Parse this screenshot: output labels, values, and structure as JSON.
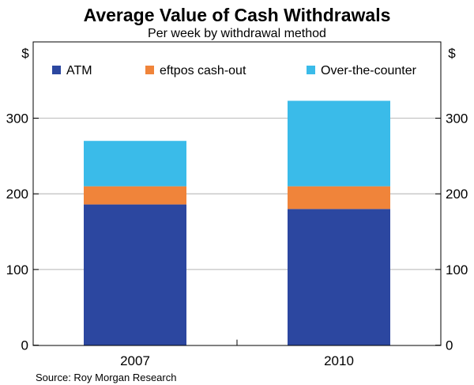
{
  "chart_data": {
    "type": "bar",
    "stacked": true,
    "title": "Average Value of Cash Withdrawals",
    "subtitle": "Per week by withdrawal method",
    "ylabel_left": "$",
    "ylabel_right": "$",
    "ylim": [
      0,
      350
    ],
    "yticks": [
      0,
      100,
      200,
      300
    ],
    "categories": [
      "2007",
      "2010"
    ],
    "series": [
      {
        "name": "ATM",
        "color": "#2c47a0",
        "values": [
          186,
          180
        ]
      },
      {
        "name": "eftpos cash-out",
        "color": "#f0843a",
        "values": [
          24,
          30
        ]
      },
      {
        "name": "Over-the-counter",
        "color": "#3abbe9",
        "values": [
          60,
          113
        ]
      }
    ],
    "grid": true,
    "legend": "top",
    "source": "Source: Roy Morgan Research"
  }
}
